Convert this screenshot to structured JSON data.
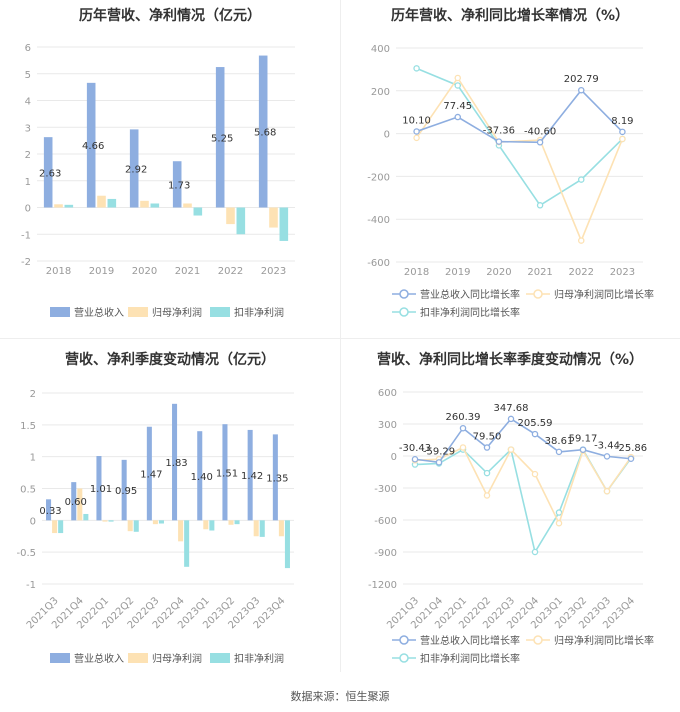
{
  "source": "数据来源：恒生聚源",
  "colors": {
    "revenue": "#8eaee0",
    "net_profit": "#fde2b4",
    "deducted": "#97dfe2",
    "grid": "#e9e9e9",
    "axis_text": "#999999"
  },
  "chart_data": [
    {
      "id": "annual-values",
      "type": "bar",
      "title": "历年营收、净利情况（亿元）",
      "categories": [
        "2018",
        "2019",
        "2020",
        "2021",
        "2022",
        "2023"
      ],
      "ylim": [
        -2,
        6
      ],
      "yticks": [
        -2,
        -1,
        0,
        1,
        2,
        3,
        4,
        5,
        6
      ],
      "series": [
        {
          "name": "营业总收入",
          "color": "#8eaee0",
          "values": [
            2.63,
            4.66,
            2.92,
            1.73,
            5.25,
            5.68
          ],
          "labels": [
            "2.63",
            "4.66",
            "2.92",
            "1.73",
            "5.25",
            "5.68"
          ]
        },
        {
          "name": "归母净利润",
          "color": "#fde2b4",
          "values": [
            0.12,
            0.44,
            0.25,
            0.15,
            -0.62,
            -0.75
          ]
        },
        {
          "name": "扣非净利润",
          "color": "#97dfe2",
          "values": [
            0.1,
            0.32,
            0.15,
            -0.3,
            -1.0,
            -1.25
          ]
        }
      ],
      "legend": "bottom"
    },
    {
      "id": "annual-growth",
      "type": "line",
      "title": "历年营收、净利同比增长率情况（%）",
      "categories": [
        "2018",
        "2019",
        "2020",
        "2021",
        "2022",
        "2023"
      ],
      "ylim": [
        -600,
        400
      ],
      "yticks": [
        -600,
        -400,
        -200,
        0,
        200,
        400
      ],
      "series": [
        {
          "name": "营业总收入同比增长率",
          "color": "#8eaee0",
          "values": [
            10.1,
            77.45,
            -37.36,
            -40.6,
            202.79,
            8.19
          ],
          "labels": [
            "10.10",
            "77.45",
            "-37.36",
            "-40.60",
            "202.79",
            "8.19"
          ]
        },
        {
          "name": "归母净利润同比增长率",
          "color": "#fde2b4",
          "values": [
            -20,
            260,
            -40,
            -30,
            -500,
            -25
          ]
        },
        {
          "name": "扣非净利润同比增长率",
          "color": "#97dfe2",
          "values": [
            305,
            225,
            -55,
            -335,
            -215,
            -25
          ]
        }
      ],
      "legend": "bottom"
    },
    {
      "id": "quarterly-values",
      "type": "bar",
      "title": "营收、净利季度变动情况（亿元）",
      "categories": [
        "2021Q3",
        "2021Q4",
        "2022Q1",
        "2022Q2",
        "2022Q3",
        "2022Q4",
        "2023Q1",
        "2023Q2",
        "2023Q3",
        "2023Q4"
      ],
      "ylim": [
        -1,
        2
      ],
      "yticks": [
        -1,
        -0.5,
        0,
        0.5,
        1,
        1.5,
        2
      ],
      "series": [
        {
          "name": "营业总收入",
          "color": "#8eaee0",
          "values": [
            0.33,
            0.6,
            1.01,
            0.95,
            1.47,
            1.83,
            1.4,
            1.51,
            1.42,
            1.35
          ],
          "labels": [
            "0.33",
            "0.60",
            "1.01",
            "0.95",
            "1.47",
            "1.83",
            "1.40",
            "1.51",
            "1.42",
            "1.35"
          ]
        },
        {
          "name": "归母净利润",
          "color": "#fde2b4",
          "values": [
            -0.2,
            0.5,
            -0.02,
            -0.17,
            -0.06,
            -0.33,
            -0.14,
            -0.07,
            -0.25,
            -0.25
          ]
        },
        {
          "name": "扣非净利润",
          "color": "#97dfe2",
          "values": [
            -0.2,
            0.1,
            -0.02,
            -0.18,
            -0.05,
            -0.73,
            -0.16,
            -0.06,
            -0.26,
            -0.75
          ]
        }
      ],
      "legend": "bottom"
    },
    {
      "id": "quarterly-growth",
      "type": "line",
      "title": "营收、净利同比增长率季度变动情况（%）",
      "categories": [
        "2021Q3",
        "2021Q4",
        "2022Q1",
        "2022Q2",
        "2022Q3",
        "2022Q4",
        "2023Q1",
        "2023Q2",
        "2023Q3",
        "2023Q4"
      ],
      "ylim": [
        -1200,
        600
      ],
      "yticks": [
        -1200,
        -900,
        -600,
        -300,
        0,
        300,
        600
      ],
      "series": [
        {
          "name": "营业总收入同比增长率",
          "color": "#8eaee0",
          "values": [
            -30.43,
            -59.29,
            260.39,
            79.5,
            347.68,
            205.59,
            38.61,
            59.17,
            -3.44,
            -25.86
          ],
          "labels": [
            "-30.43",
            "-59.29",
            "260.39",
            "79.50",
            "347.68",
            "205.59",
            "38.61",
            "59.17",
            "-3.44",
            "-25.86"
          ]
        },
        {
          "name": "归母净利润同比增长率",
          "color": "#fde2b4",
          "values": [
            -40,
            -30,
            80,
            -370,
            60,
            -170,
            -630,
            50,
            -330,
            -10
          ]
        },
        {
          "name": "扣非净利润同比增长率",
          "color": "#97dfe2",
          "values": [
            -80,
            -70,
            60,
            -160,
            60,
            -900,
            -530,
            60,
            -330,
            -20
          ]
        }
      ],
      "legend": "bottom"
    }
  ]
}
